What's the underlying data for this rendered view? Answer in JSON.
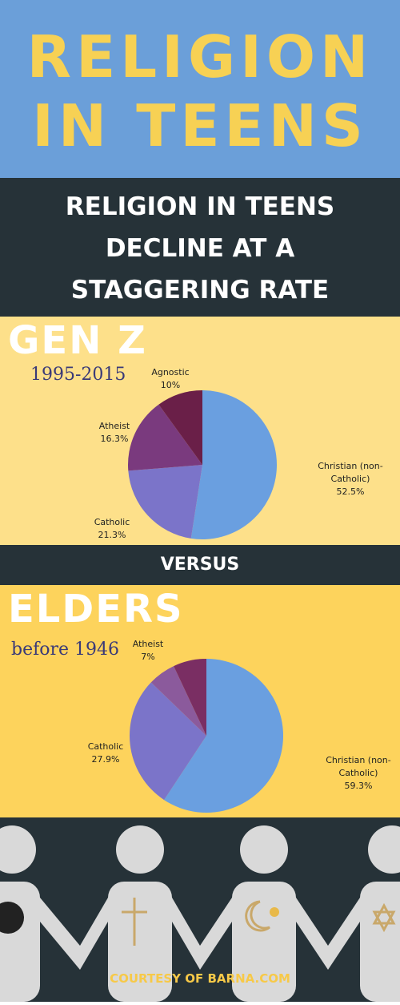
{
  "header": {
    "title_lines": [
      "RELIGION",
      "IN TEENS"
    ],
    "subtitle_lines": [
      "RELIGION IN TEENS",
      "DECLINE AT A",
      "STAGGERING RATE"
    ]
  },
  "separator": "VERSUS",
  "footer": "COURTESY OF BARNA.COM",
  "chart_data": [
    {
      "type": "pie",
      "title": "GEN Z",
      "subtitle": "1995-2015",
      "categories": [
        "Christian (non-Catholic)",
        "Catholic",
        "Atheist",
        "Agnostic"
      ],
      "values": [
        52.5,
        21.3,
        16.3,
        10
      ],
      "value_labels": [
        "52.5%",
        "21.3%",
        "16.3%",
        "10%"
      ],
      "colors": [
        "#6a9fe0",
        "#7b74c9",
        "#7a3a7e",
        "#6a1f48"
      ]
    },
    {
      "type": "pie",
      "title": "ELDERS",
      "subtitle": "before 1946",
      "categories": [
        "Christian (non-Catholic)",
        "Catholic",
        null,
        "Atheist"
      ],
      "values": [
        59.3,
        27.9,
        5.8,
        7
      ],
      "value_labels": [
        "59.3%",
        "27.9%",
        null,
        "7%"
      ],
      "colors": [
        "#6a9fe0",
        "#7b74c9",
        "#8b5a9c",
        "#7a2e63"
      ]
    }
  ]
}
